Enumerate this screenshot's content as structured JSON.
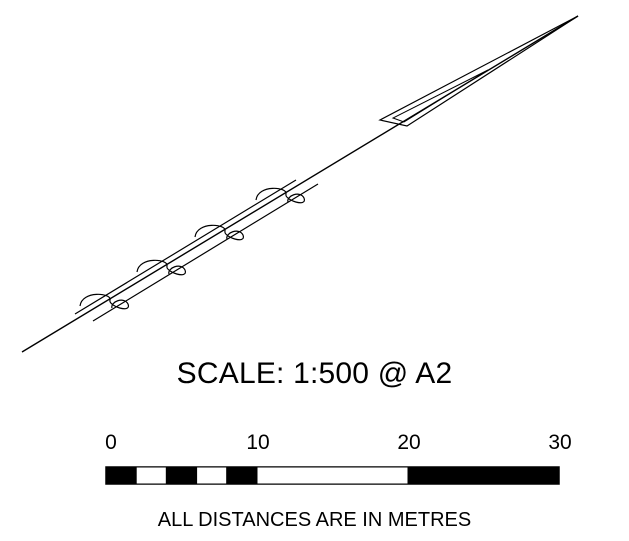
{
  "scale": {
    "title": "SCALE: 1:500 @ A2",
    "ratio": "1:500",
    "paper": "A2",
    "units": "metres"
  },
  "scale_bar": {
    "tick_labels": [
      "0",
      "10",
      "20",
      "30"
    ],
    "segments": [
      {
        "from": 0,
        "to": 2,
        "fill": "black"
      },
      {
        "from": 2,
        "to": 4,
        "fill": "white"
      },
      {
        "from": 4,
        "to": 6,
        "fill": "black"
      },
      {
        "from": 6,
        "to": 8,
        "fill": "white"
      },
      {
        "from": 8,
        "to": 10,
        "fill": "black"
      },
      {
        "from": 10,
        "to": 20,
        "fill": "white"
      },
      {
        "from": 20,
        "to": 30,
        "fill": "black"
      }
    ]
  },
  "note": "ALL DISTANCES ARE IN METRES",
  "colors": {
    "line": "#000000",
    "background": "#ffffff"
  }
}
